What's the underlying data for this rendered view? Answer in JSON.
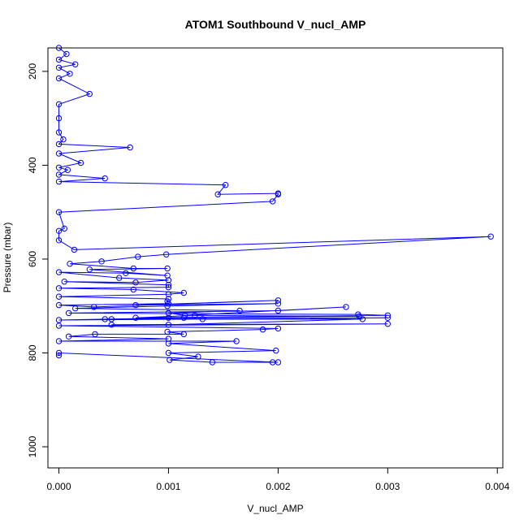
{
  "chart_data": {
    "type": "line",
    "title": "ATOM1 Southbound V_nucl_AMP",
    "xlabel": "V_nucl_AMP",
    "ylabel": "Pressure (mbar)",
    "xlim": [
      -0.0001,
      0.00405
    ],
    "ylim": [
      1045,
      150
    ],
    "y_reversed": true,
    "xticks": [
      0.0,
      0.001,
      0.002,
      0.003,
      0.004
    ],
    "xtick_labels": [
      "0.000",
      "0.001",
      "0.002",
      "0.003",
      "0.004"
    ],
    "yticks": [
      200,
      400,
      600,
      800,
      1000
    ],
    "ytick_labels": [
      "200",
      "400",
      "600",
      "800",
      "1000"
    ],
    "grid": false,
    "series": [
      {
        "color": "#0000ff",
        "marker": "open-circle",
        "x": [
          0.0,
          7e-05,
          0.0,
          0.00015,
          0.0,
          0.0001,
          0.0,
          0.00028,
          0.0,
          0.0,
          0.0,
          4e-05,
          0.0,
          0.00065,
          0.0,
          0.0002,
          0.0,
          8e-05,
          0.0,
          0.00042,
          0.0,
          0.00152,
          0.00145,
          0.002,
          0.002,
          0.00195,
          0.0,
          5e-05,
          0.0,
          0.0,
          0.00014,
          0.00394,
          0.00098,
          0.00072,
          0.00039,
          0.0001,
          0.00068,
          0.00099,
          0.00028,
          0.00099,
          0.00061,
          0.0,
          0.00055,
          0.001,
          0.0007,
          5e-05,
          0.001,
          0.001,
          0.0,
          0.00068,
          0.00114,
          0.001,
          0.0,
          0.001,
          0.00099,
          0.001,
          0.0,
          0.00032,
          0.002,
          0.0007,
          0.002,
          0.00099,
          0.00015,
          0.00165,
          0.001,
          0.00115,
          0.00262,
          0.002,
          9e-05,
          0.00273,
          0.003,
          0.0007,
          0.00124,
          0.00274,
          0.001,
          0.00048,
          0.003,
          0.0,
          0.00042,
          0.00114,
          0.00131,
          0.00277,
          0.001,
          0.00048,
          0.003,
          0.0,
          0.002,
          0.00186,
          0.00099,
          0.00114,
          0.00033,
          9e-05,
          0.001,
          0.0,
          0.00162,
          0.001,
          0.00198,
          0.001,
          0.00127,
          0.00101,
          0.0014,
          0.00195,
          0.002,
          0.0,
          0.0
        ],
        "y": [
          150,
          163,
          175,
          185,
          192,
          205,
          215,
          248,
          270,
          300,
          330,
          345,
          355,
          362,
          375,
          395,
          405,
          410,
          420,
          428,
          435,
          442,
          462,
          460,
          462,
          477,
          500,
          535,
          540,
          560,
          580,
          552,
          590,
          595,
          605,
          610,
          620,
          620,
          622,
          635,
          630,
          628,
          640,
          645,
          650,
          648,
          655,
          660,
          662,
          665,
          672,
          675,
          680,
          685,
          690,
          695,
          698,
          702,
          688,
          698,
          695,
          700,
          705,
          710,
          715,
          720,
          702,
          710,
          715,
          718,
          720,
          725,
          720,
          722,
          725,
          728,
          725,
          730,
          728,
          725,
          728,
          728,
          740,
          740,
          738,
          742,
          748,
          750,
          755,
          760,
          760,
          765,
          770,
          775,
          775,
          780,
          795,
          800,
          808,
          815,
          820,
          820,
          820,
          800,
          805
        ]
      }
    ]
  }
}
